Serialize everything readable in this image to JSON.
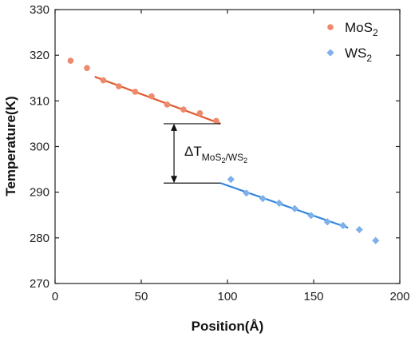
{
  "chart_data": {
    "type": "scatter",
    "xlabel": "Position(Å)",
    "ylabel": "Temperature(K)",
    "xlim": [
      0,
      200
    ],
    "ylim": [
      270,
      330
    ],
    "xticks": [
      0,
      50,
      100,
      150,
      200
    ],
    "yticks": [
      270,
      280,
      290,
      300,
      310,
      320,
      330
    ],
    "legend_position": "top-right",
    "series": [
      {
        "name": "MoS",
        "name_subscript": "2",
        "marker": "circle",
        "color": "#ec8a6b",
        "x": [
          9,
          18.5,
          28,
          37,
          46.5,
          56,
          65,
          74.5,
          84,
          93.5
        ],
        "y": [
          318.8,
          317.2,
          314.5,
          313.2,
          312.0,
          311.0,
          309.2,
          308.1,
          307.3,
          305.6
        ]
      },
      {
        "name": "WS",
        "name_subscript": "2",
        "marker": "diamond",
        "color": "#7fb0ea",
        "x": [
          102,
          111,
          120.5,
          130,
          139,
          148.5,
          158,
          167,
          176.5,
          186
        ],
        "y": [
          292.8,
          289.8,
          288.6,
          287.6,
          286.4,
          284.9,
          283.5,
          282.7,
          281.8,
          279.4
        ]
      }
    ],
    "fit_lines": [
      {
        "series": "MoS2",
        "color": "#e15a2e",
        "x": [
          23,
          96
        ],
        "y": [
          315.3,
          305.0
        ]
      },
      {
        "series": "WS2",
        "color": "#2f86e0",
        "x": [
          96,
          170
        ],
        "y": [
          292.0,
          282.2
        ]
      }
    ],
    "annotation": {
      "prefix": "ΔT",
      "sub_part1": "MoS",
      "sub_part1_sub": "2",
      "sub_part2": "/WS",
      "sub_part2_sub": "2",
      "hline_x": [
        63,
        96
      ],
      "upper_y": 305,
      "lower_y": 292,
      "arrow_x": 69
    }
  }
}
